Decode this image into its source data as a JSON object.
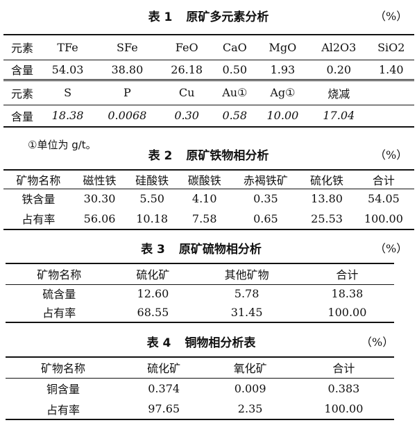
{
  "unit": "（%）",
  "table1": {
    "label": "表 1",
    "title": "原矿多元素分析",
    "rows": [
      [
        "元素",
        "TFe",
        "SFe",
        "FeO",
        "CaO",
        "MgO",
        "Al2O3",
        "SiO2"
      ],
      [
        "含量",
        "54.03",
        "38.80",
        "26.18",
        "0.50",
        "1.93",
        "0.20",
        "1.40"
      ],
      [
        "元素",
        "S",
        "P",
        "Cu",
        "Au①",
        "Ag①",
        "烧减",
        ""
      ],
      [
        "含量",
        "18.38",
        "0.0068",
        "0.30",
        "0.58",
        "10.00",
        "17.04",
        ""
      ]
    ],
    "footnote": "①单位为 g/t。"
  },
  "table2": {
    "label": "表 2",
    "title": "原矿铁物相分析",
    "rows": [
      [
        "矿物名称",
        "磁性铁",
        "硅酸铁",
        "碳酸铁",
        "赤褐铁矿",
        "硫化铁",
        "合计"
      ],
      [
        "铁含量",
        "30.30",
        "5.50",
        "4.10",
        "0.35",
        "13.80",
        "54.05"
      ],
      [
        "占有率",
        "56.06",
        "10.18",
        "7.58",
        "0.65",
        "25.53",
        "100.00"
      ]
    ]
  },
  "table3": {
    "label": "表 3",
    "title": "原矿硫物相分析",
    "rows": [
      [
        "矿物名称",
        "硫化矿",
        "其他矿物",
        "合计"
      ],
      [
        "硫含量",
        "12.60",
        "5.78",
        "18.38"
      ],
      [
        "占有率",
        "68.55",
        "31.45",
        "100.00"
      ]
    ]
  },
  "table4": {
    "label": "表 4",
    "title": "铜物相分析表",
    "rows": [
      [
        "矿物名称",
        "硫化矿",
        "氧化矿",
        "合计"
      ],
      [
        "铜含量",
        "0.374",
        "0.009",
        "0.383"
      ],
      [
        "占有率",
        "97.65",
        "2.35",
        "100.00"
      ]
    ]
  }
}
